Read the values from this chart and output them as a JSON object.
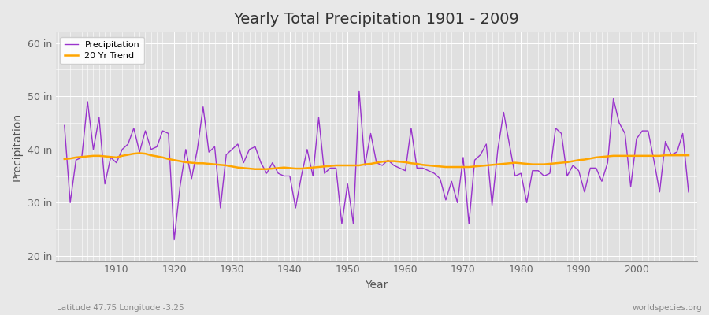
{
  "title": "Yearly Total Precipitation 1901 - 2009",
  "xlabel": "Year",
  "ylabel": "Precipitation",
  "x_start": 1901,
  "x_end": 2009,
  "y_ticks": [
    20,
    30,
    40,
    50,
    60
  ],
  "y_tick_labels": [
    "20 in",
    "30 in",
    "40 in",
    "50 in",
    "60 in"
  ],
  "ylim": [
    19,
    62
  ],
  "xlim": [
    1899.5,
    2010.5
  ],
  "precip_color": "#9933CC",
  "trend_color": "#FFA500",
  "bg_color": "#E8E8E8",
  "plot_bg_color": "#E0E0E0",
  "grid_color": "#FFFFFF",
  "legend_labels": [
    "Precipitation",
    "20 Yr Trend"
  ],
  "bottom_left_text": "Latitude 47.75 Longitude -3.25",
  "bottom_right_text": "worldspecies.org",
  "precipitation": [
    44.5,
    30.0,
    38.0,
    38.5,
    49.0,
    40.0,
    46.0,
    33.5,
    38.5,
    37.5,
    40.0,
    41.0,
    44.0,
    39.5,
    43.5,
    40.0,
    40.5,
    43.5,
    43.0,
    23.0,
    33.0,
    40.0,
    34.5,
    40.0,
    48.0,
    39.5,
    40.5,
    29.0,
    39.0,
    40.0,
    41.0,
    37.5,
    40.0,
    40.5,
    37.5,
    35.5,
    37.5,
    35.5,
    35.0,
    35.0,
    29.0,
    35.0,
    40.0,
    35.0,
    46.0,
    35.5,
    36.5,
    36.5,
    26.0,
    33.5,
    26.0,
    51.0,
    37.0,
    43.0,
    37.5,
    37.0,
    38.0,
    37.0,
    36.5,
    36.0,
    44.0,
    36.5,
    36.5,
    36.0,
    35.5,
    34.5,
    30.5,
    34.0,
    30.0,
    38.5,
    26.0,
    38.0,
    39.0,
    41.0,
    29.5,
    40.0,
    47.0,
    41.0,
    35.0,
    35.5,
    30.0,
    36.0,
    36.0,
    35.0,
    35.5,
    44.0,
    43.0,
    35.0,
    37.0,
    36.0,
    32.0,
    36.5,
    36.5,
    34.0,
    37.5,
    49.5,
    45.0,
    43.0,
    33.0,
    42.0,
    43.5,
    43.5,
    38.0,
    32.0,
    41.5,
    39.0,
    39.5,
    43.0,
    32.0
  ],
  "trend": [
    38.2,
    38.3,
    38.5,
    38.6,
    38.7,
    38.8,
    38.8,
    38.7,
    38.6,
    38.5,
    38.8,
    39.0,
    39.2,
    39.3,
    39.2,
    38.9,
    38.7,
    38.5,
    38.2,
    38.0,
    37.8,
    37.6,
    37.5,
    37.4,
    37.4,
    37.3,
    37.2,
    37.1,
    37.0,
    36.8,
    36.6,
    36.5,
    36.4,
    36.3,
    36.3,
    36.3,
    36.4,
    36.5,
    36.6,
    36.5,
    36.4,
    36.4,
    36.5,
    36.6,
    36.7,
    36.8,
    36.9,
    37.0,
    37.0,
    37.0,
    37.0,
    37.0,
    37.2,
    37.3,
    37.5,
    37.7,
    37.8,
    37.8,
    37.7,
    37.6,
    37.4,
    37.3,
    37.1,
    37.0,
    36.9,
    36.8,
    36.7,
    36.7,
    36.7,
    36.7,
    36.7,
    36.8,
    36.9,
    37.0,
    37.1,
    37.2,
    37.3,
    37.4,
    37.5,
    37.4,
    37.3,
    37.2,
    37.2,
    37.2,
    37.3,
    37.4,
    37.5,
    37.6,
    37.8,
    38.0,
    38.1,
    38.3,
    38.5,
    38.6,
    38.7,
    38.8,
    38.8,
    38.8,
    38.8,
    38.8,
    38.8,
    38.8,
    38.8,
    38.8,
    38.9,
    38.9,
    38.9,
    38.9,
    38.9
  ]
}
